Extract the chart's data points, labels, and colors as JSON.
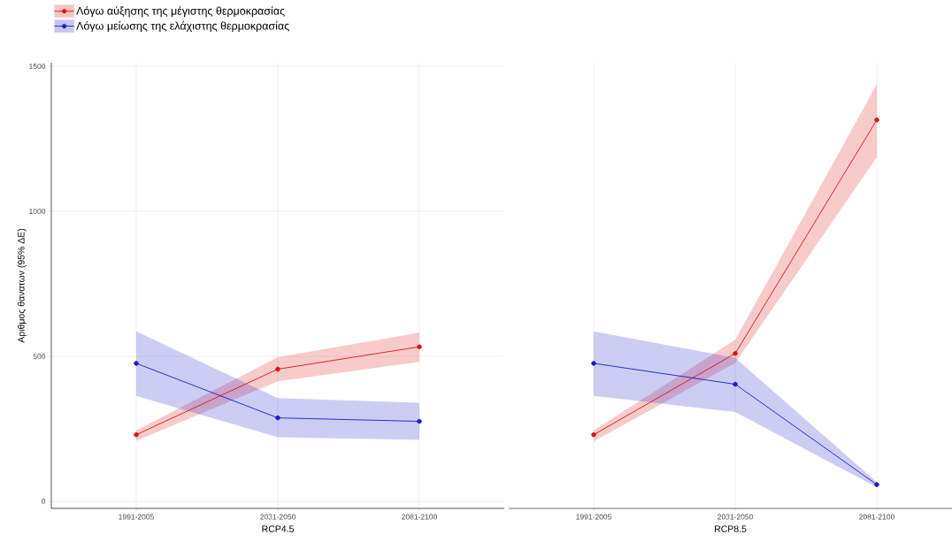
{
  "chart_data": [
    {
      "type": "line",
      "categories": [
        "1991-2005",
        "2031-2050",
        "2081-2100"
      ],
      "xlabel": "RCP4.5",
      "ylabel": "Αριθμος θανατων (95% ΔΕ)",
      "ylim": [
        -24,
        1512
      ],
      "yticks": [
        0,
        500,
        1000,
        1500
      ],
      "grid": true,
      "legend": "top left",
      "marker": "circle",
      "line_style": "solid",
      "series": [
        {
          "name": "Λόγω αύξησης της μέγιστης θερμοκρασίας",
          "color": "#dd1111",
          "values": [
            230,
            456,
            533
          ],
          "lower": [
            209,
            414,
            481
          ],
          "upper": [
            245,
            497,
            582
          ]
        },
        {
          "name": "Λόγω μείωσης της ελάχιστης θερμοκρασίας",
          "color": "#1a1acc",
          "values": [
            476,
            288,
            276
          ],
          "lower": [
            364,
            221,
            212
          ],
          "upper": [
            586,
            356,
            340
          ]
        }
      ]
    },
    {
      "type": "line",
      "categories": [
        "1991-2005",
        "2031-2050",
        "2081-2100"
      ],
      "xlabel": "RCP8.5",
      "ylim": [
        -24,
        1512
      ],
      "yticks": [
        0,
        500,
        1000,
        1500
      ],
      "grid": true,
      "marker": "circle",
      "line_style": "solid",
      "tick_labels": "x",
      "series": [
        {
          "color": "#dd1111",
          "values": [
            230,
            510,
            1315
          ],
          "lower": [
            207,
            477,
            1187
          ],
          "upper": [
            245,
            557,
            1437
          ]
        },
        {
          "color": "#1a1acc",
          "values": [
            476,
            404,
            58
          ],
          "lower": [
            364,
            308,
            49
          ],
          "upper": [
            586,
            495,
            67
          ]
        }
      ]
    }
  ]
}
